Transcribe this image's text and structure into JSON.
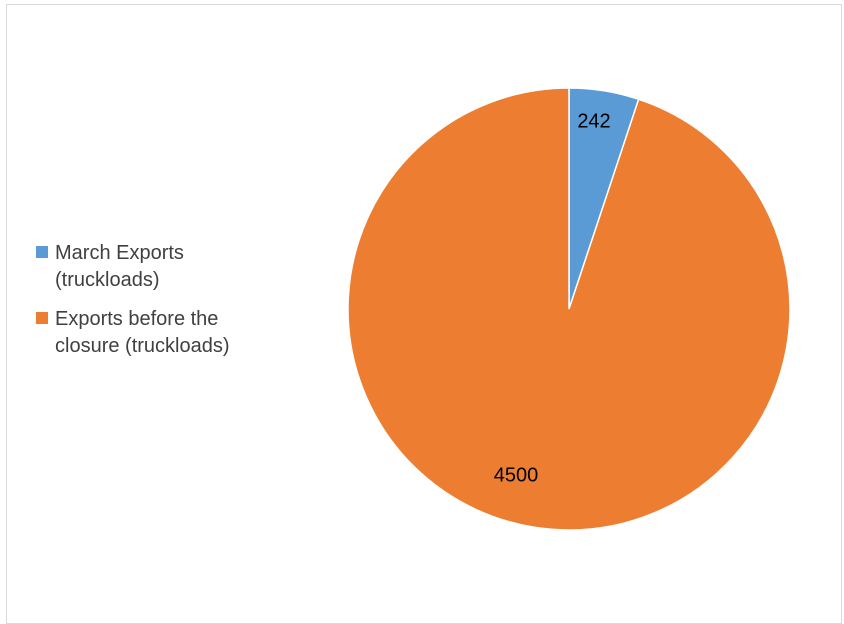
{
  "chart_data": {
    "type": "pie",
    "title": "",
    "legend_position": "left",
    "series": [
      {
        "values": [
          242,
          4500
        ]
      }
    ],
    "categories": [
      "March Exports (truckloads)",
      "Exports before the closure (truckloads)"
    ],
    "values": [
      242,
      4500
    ],
    "data_labels": [
      "242",
      "4500"
    ],
    "colors": [
      "#5b9bd5",
      "#ed7d31"
    ],
    "start_angle_deg": 0,
    "direction": "clockwise"
  },
  "legend": {
    "items": [
      {
        "label": "March Exports (truckloads)",
        "color": "#5b9bd5"
      },
      {
        "label": "Exports before the closure (truckloads)",
        "color": "#ed7d31"
      }
    ]
  }
}
